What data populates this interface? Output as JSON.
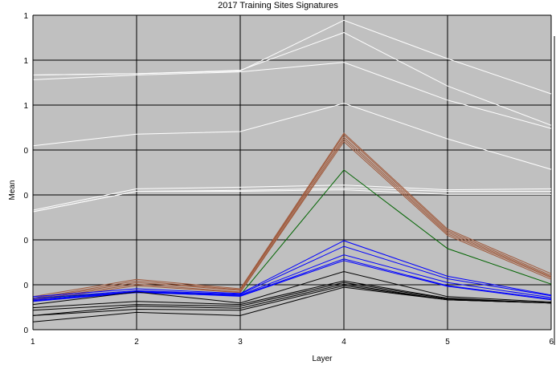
{
  "chart_data": {
    "type": "line",
    "title": "2017  Training Sites Signatures",
    "xlabel": "Layer",
    "ylabel": "Mean",
    "x": [
      1,
      2,
      3,
      4,
      5,
      6
    ],
    "xlim": [
      1,
      6
    ],
    "ylim": [
      0,
      1
    ],
    "y_tick_labels": [
      "0",
      "0",
      "0",
      "0",
      "0",
      "1",
      "1",
      "1"
    ],
    "grid": true,
    "legend": "none",
    "plot_background": "#c0c0c0",
    "series": [
      {
        "color": "#ffffff",
        "values": [
          0.81,
          0.814,
          0.823,
          0.984,
          0.862,
          0.75
        ]
      },
      {
        "color": "#ffffff",
        "values": [
          0.81,
          0.814,
          0.825,
          0.945,
          0.775,
          0.65
        ]
      },
      {
        "color": "#ffffff",
        "values": [
          0.795,
          0.81,
          0.82,
          0.85,
          0.73,
          0.64
        ]
      },
      {
        "color": "#ffffff",
        "values": [
          0.585,
          0.622,
          0.63,
          0.72,
          0.607,
          0.51
        ]
      },
      {
        "color": "#ffffff",
        "values": [
          0.375,
          0.44,
          0.44,
          0.445,
          0.43,
          0.43
        ]
      },
      {
        "color": "#ffffff",
        "values": [
          0.375,
          0.44,
          0.443,
          0.45,
          0.44,
          0.44
        ]
      },
      {
        "color": "#ffffff",
        "values": [
          0.38,
          0.448,
          0.453,
          0.46,
          0.445,
          0.448
        ]
      },
      {
        "color": "#a05a3c",
        "values": [
          0.105,
          0.16,
          0.13,
          0.625,
          0.32,
          0.178
        ]
      },
      {
        "color": "#a05a3c",
        "values": [
          0.1,
          0.155,
          0.127,
          0.62,
          0.315,
          0.172
        ]
      },
      {
        "color": "#a05a3c",
        "values": [
          0.098,
          0.15,
          0.125,
          0.612,
          0.31,
          0.168
        ]
      },
      {
        "color": "#a05a3c",
        "values": [
          0.095,
          0.145,
          0.12,
          0.605,
          0.305,
          0.165
        ]
      },
      {
        "color": "#a05a3c",
        "values": [
          0.092,
          0.14,
          0.118,
          0.598,
          0.3,
          0.16
        ]
      },
      {
        "color": "#006400",
        "values": [
          0.1,
          0.12,
          0.11,
          0.508,
          0.258,
          0.145
        ]
      },
      {
        "color": "#0000ff",
        "values": [
          0.105,
          0.13,
          0.115,
          0.283,
          0.17,
          0.11
        ]
      },
      {
        "color": "#0000ff",
        "values": [
          0.1,
          0.124,
          0.113,
          0.265,
          0.162,
          0.108
        ]
      },
      {
        "color": "#0000ff",
        "values": [
          0.095,
          0.122,
          0.11,
          0.238,
          0.15,
          0.102
        ]
      },
      {
        "color": "#0000ff",
        "values": [
          0.09,
          0.118,
          0.108,
          0.225,
          0.14,
          0.098
        ]
      },
      {
        "color": "#0000ff",
        "values": [
          0.092,
          0.12,
          0.106,
          0.22,
          0.138,
          0.095
        ]
      },
      {
        "color": "#000000",
        "values": [
          0.08,
          0.12,
          0.085,
          0.185,
          0.105,
          0.088
        ]
      },
      {
        "color": "#000000",
        "values": [
          0.07,
          0.09,
          0.08,
          0.155,
          0.1,
          0.085
        ]
      },
      {
        "color": "#000000",
        "values": [
          0.062,
          0.08,
          0.075,
          0.15,
          0.098,
          0.085
        ]
      },
      {
        "color": "#000000",
        "values": [
          0.045,
          0.075,
          0.068,
          0.145,
          0.095,
          0.085
        ]
      },
      {
        "color": "#000000",
        "values": [
          0.045,
          0.065,
          0.062,
          0.14,
          0.095,
          0.085
        ]
      },
      {
        "color": "#000000",
        "values": [
          0.025,
          0.055,
          0.045,
          0.135,
          0.095,
          0.085
        ]
      }
    ]
  }
}
